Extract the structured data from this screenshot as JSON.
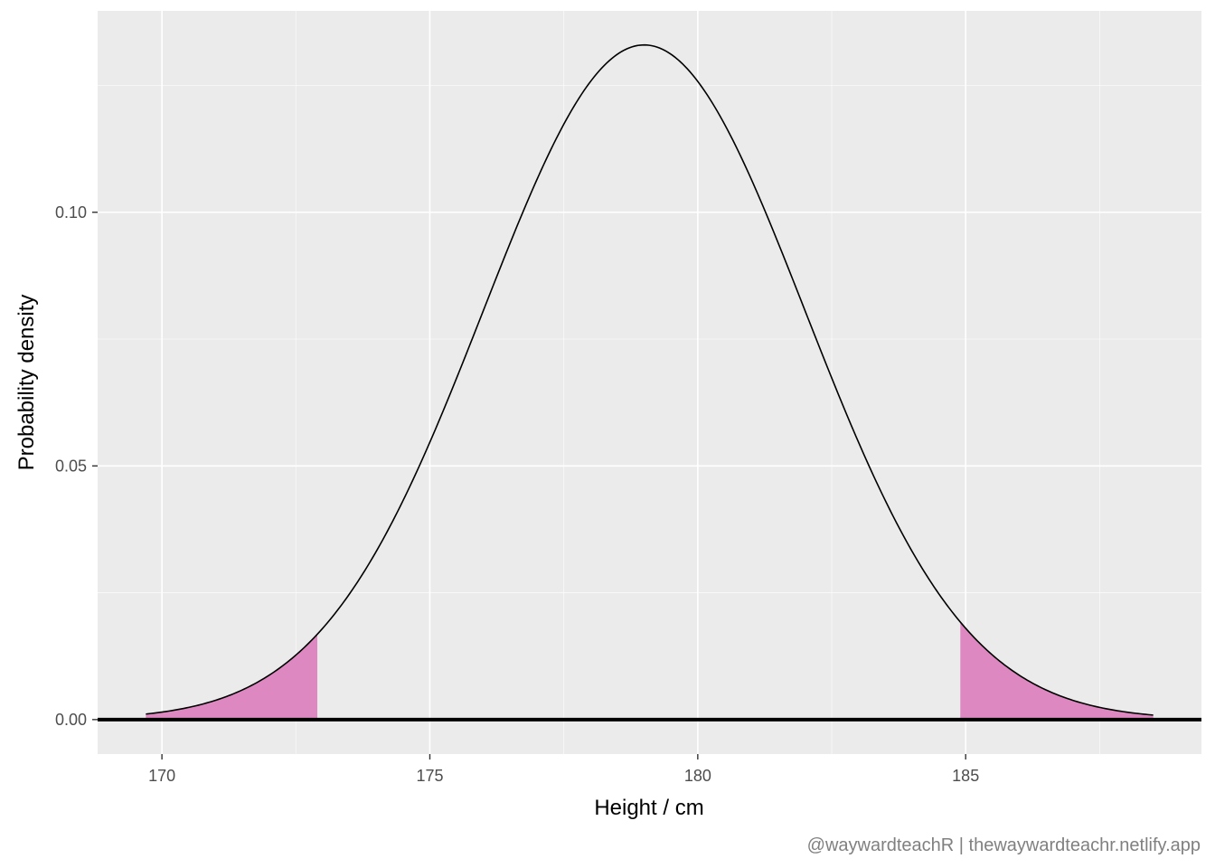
{
  "chart_data": {
    "type": "area",
    "distribution": "normal",
    "mean": 179,
    "sd": 3,
    "x_range": [
      169.7,
      188.5
    ],
    "xlabel": "Height / cm",
    "ylabel": "Probability density",
    "xlim": [
      168.8,
      189.4
    ],
    "ylim": [
      -0.0068,
      0.1397
    ],
    "x_ticks": [
      170,
      175,
      180,
      185
    ],
    "x_tick_labels": [
      "170",
      "175",
      "180",
      "185"
    ],
    "y_ticks": [
      0.0,
      0.05,
      0.1
    ],
    "y_tick_labels": [
      "0.00",
      "0.05",
      "0.10"
    ],
    "shaded_regions": [
      {
        "x_from": 169.7,
        "x_to": 172.9
      },
      {
        "x_from": 184.9,
        "x_to": 188.5
      }
    ],
    "reference_line_y": 0,
    "grid": true,
    "colors": {
      "panel_background": "#ebebeb",
      "grid_major": "#ffffff",
      "curve": "#000000",
      "shade": "#dd88c0"
    },
    "caption": "@waywardteachR | thewaywardteachr.netlify.app"
  }
}
